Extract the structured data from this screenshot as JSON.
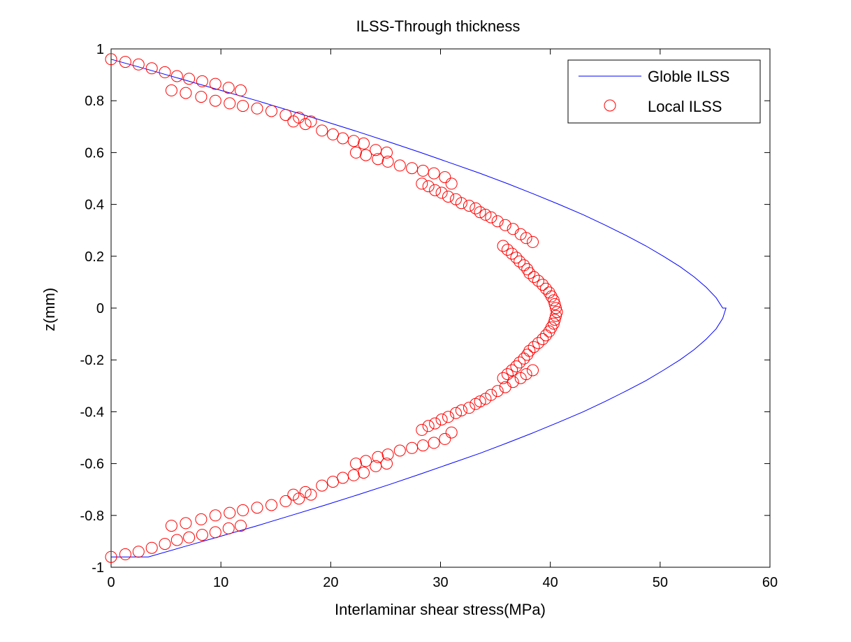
{
  "chart_data": {
    "type": "scatter",
    "title": "ILSS-Through thickness",
    "xlabel": "Interlaminar shear stress(MPa)",
    "ylabel": "z(mm)",
    "xlim": [
      0,
      60
    ],
    "ylim": [
      -1,
      1
    ],
    "xticks": [
      "0",
      "10",
      "20",
      "30",
      "40",
      "50",
      "60"
    ],
    "yticks": [
      "1",
      "0.8",
      "0.6",
      "0.4",
      "0.2",
      "0",
      "-0.2",
      "-0.4",
      "-0.6",
      "-0.8",
      "-1"
    ],
    "grid": false,
    "legend_position": "top-right",
    "series": [
      {
        "name": "Globle ILSS",
        "style": "line",
        "color": "#0000ff",
        "x": [
          0,
          3.4,
          6.7,
          10.0,
          13.3,
          16.4,
          19.5,
          22.5,
          25.4,
          28.2,
          30.9,
          33.6,
          36.1,
          38.5,
          40.8,
          43.0,
          45.0,
          46.9,
          48.7,
          50.3,
          51.8,
          53.1,
          54.2,
          55.1,
          55.7,
          56.0,
          55.7,
          55.1,
          54.2,
          53.1,
          51.8,
          50.3,
          48.7,
          46.9,
          45.0,
          43.0,
          40.8,
          38.5,
          36.1,
          33.6,
          30.9,
          28.2,
          25.4,
          22.5,
          19.5,
          16.4,
          13.3,
          10.0,
          6.7,
          3.4,
          0
        ],
        "y": [
          0.96,
          0.92,
          0.88,
          0.84,
          0.8,
          0.76,
          0.72,
          0.68,
          0.64,
          0.6,
          0.56,
          0.52,
          0.48,
          0.44,
          0.4,
          0.36,
          0.32,
          0.28,
          0.24,
          0.2,
          0.16,
          0.12,
          0.08,
          0.04,
          0.0,
          0.0,
          -0.04,
          -0.08,
          -0.12,
          -0.16,
          -0.2,
          -0.24,
          -0.28,
          -0.32,
          -0.36,
          -0.4,
          -0.44,
          -0.48,
          -0.52,
          -0.56,
          -0.6,
          -0.64,
          -0.68,
          -0.72,
          -0.76,
          -0.8,
          -0.84,
          -0.88,
          -0.92,
          -0.96,
          -0.96
        ]
      },
      {
        "name": "Local ILSS",
        "style": "markers",
        "marker": "circle",
        "color": "#ff0000",
        "x": [
          0.0,
          1.3,
          2.5,
          3.7,
          4.9,
          6.0,
          7.1,
          8.3,
          9.5,
          10.7,
          11.8,
          5.5,
          6.8,
          8.2,
          9.5,
          10.8,
          12.0,
          13.3,
          14.6,
          15.9,
          16.6,
          17.1,
          17.7,
          18.2,
          19.2,
          20.2,
          21.1,
          22.1,
          23.0,
          24.1,
          25.1,
          22.3,
          23.2,
          24.3,
          25.2,
          26.3,
          27.4,
          28.4,
          29.4,
          30.4,
          31.0,
          28.3,
          28.9,
          29.5,
          30.1,
          30.7,
          31.4,
          31.9,
          32.6,
          33.2,
          33.6,
          34.1,
          34.6,
          35.2,
          35.9,
          36.6,
          37.3,
          37.8,
          38.4,
          35.7,
          36.1,
          36.5,
          36.9,
          37.2,
          37.6,
          37.9,
          38.1,
          38.5,
          38.9,
          39.3,
          39.6,
          39.9,
          40.1,
          40.3,
          40.4,
          40.5,
          40.6,
          40.5,
          40.4,
          40.3,
          40.1,
          39.9,
          39.6,
          39.3,
          38.9,
          38.5,
          38.1,
          37.9,
          37.6,
          37.2,
          36.9,
          36.5,
          36.1,
          35.7,
          38.4,
          37.8,
          37.3,
          36.6,
          35.9,
          35.2,
          34.6,
          34.1,
          33.6,
          33.2,
          32.6,
          31.9,
          31.4,
          30.7,
          30.1,
          29.5,
          28.9,
          28.3,
          31.0,
          30.4,
          29.4,
          28.4,
          27.4,
          26.3,
          25.2,
          24.3,
          23.2,
          22.3,
          25.1,
          24.1,
          23.0,
          22.1,
          21.1,
          20.2,
          19.2,
          18.2,
          17.7,
          17.1,
          16.6,
          15.9,
          14.6,
          13.3,
          12.0,
          10.8,
          9.5,
          8.2,
          6.8,
          5.5,
          11.8,
          10.7,
          9.5,
          8.3,
          7.1,
          6.0,
          4.9,
          3.7,
          2.5,
          1.3,
          0.0
        ],
        "y": [
          0.96,
          0.95,
          0.94,
          0.925,
          0.91,
          0.895,
          0.885,
          0.875,
          0.865,
          0.85,
          0.84,
          0.84,
          0.83,
          0.815,
          0.8,
          0.79,
          0.78,
          0.77,
          0.76,
          0.745,
          0.72,
          0.735,
          0.71,
          0.72,
          0.685,
          0.67,
          0.655,
          0.645,
          0.635,
          0.61,
          0.6,
          0.6,
          0.59,
          0.575,
          0.565,
          0.55,
          0.54,
          0.53,
          0.52,
          0.505,
          0.48,
          0.48,
          0.47,
          0.455,
          0.445,
          0.43,
          0.42,
          0.405,
          0.395,
          0.385,
          0.37,
          0.36,
          0.35,
          0.335,
          0.32,
          0.305,
          0.285,
          0.27,
          0.255,
          0.24,
          0.225,
          0.21,
          0.195,
          0.18,
          0.165,
          0.15,
          0.135,
          0.12,
          0.105,
          0.09,
          0.075,
          0.06,
          0.045,
          0.03,
          0.015,
          0.0,
          -0.015,
          -0.03,
          -0.045,
          -0.06,
          -0.075,
          -0.09,
          -0.105,
          -0.12,
          -0.135,
          -0.15,
          -0.165,
          -0.18,
          -0.195,
          -0.21,
          -0.225,
          -0.24,
          -0.255,
          -0.27,
          -0.24,
          -0.255,
          -0.27,
          -0.285,
          -0.305,
          -0.32,
          -0.335,
          -0.35,
          -0.36,
          -0.37,
          -0.385,
          -0.395,
          -0.405,
          -0.42,
          -0.43,
          -0.445,
          -0.455,
          -0.47,
          -0.48,
          -0.505,
          -0.52,
          -0.53,
          -0.54,
          -0.55,
          -0.565,
          -0.575,
          -0.59,
          -0.6,
          -0.6,
          -0.61,
          -0.635,
          -0.645,
          -0.655,
          -0.67,
          -0.685,
          -0.72,
          -0.71,
          -0.735,
          -0.72,
          -0.745,
          -0.76,
          -0.77,
          -0.78,
          -0.79,
          -0.8,
          -0.815,
          -0.83,
          -0.84,
          -0.84,
          -0.85,
          -0.865,
          -0.875,
          -0.885,
          -0.895,
          -0.91,
          -0.925,
          -0.94,
          -0.95,
          -0.96
        ]
      }
    ]
  }
}
